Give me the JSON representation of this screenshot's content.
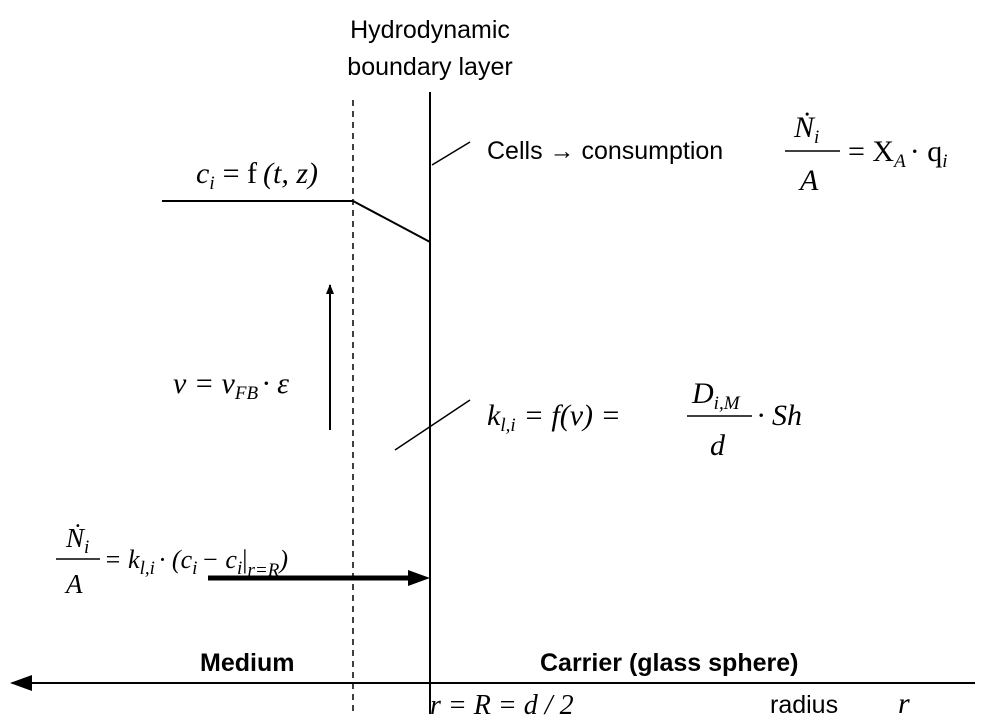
{
  "labels": {
    "boundary_layer": [
      "Hydrodynamic",
      "boundary layer"
    ],
    "cells": "Cells → consumption",
    "medium": "Medium",
    "carrier": "Carrier (glass sphere)",
    "radius": "radius",
    "radius_symbol": "r"
  },
  "equations": {
    "consumption": [
      "Ṅ",
      "i",
      "A",
      "= X",
      "A",
      "· q",
      "i"
    ],
    "concentration": [
      "c",
      "i",
      "= f",
      "(t, z)"
    ],
    "velocity": [
      "v = v",
      "FB",
      "· ε"
    ],
    "mass_transfer": [
      "k",
      "l,i",
      "= f(v) =",
      "D",
      "i,M",
      "d",
      "· Sh"
    ],
    "flux": [
      "Ṅ",
      "i",
      "A",
      "= k",
      "l,i",
      "· (c",
      "i",
      "− c",
      "i",
      "|",
      "r=R",
      ")"
    ],
    "position": "r = R = d / 2"
  }
}
